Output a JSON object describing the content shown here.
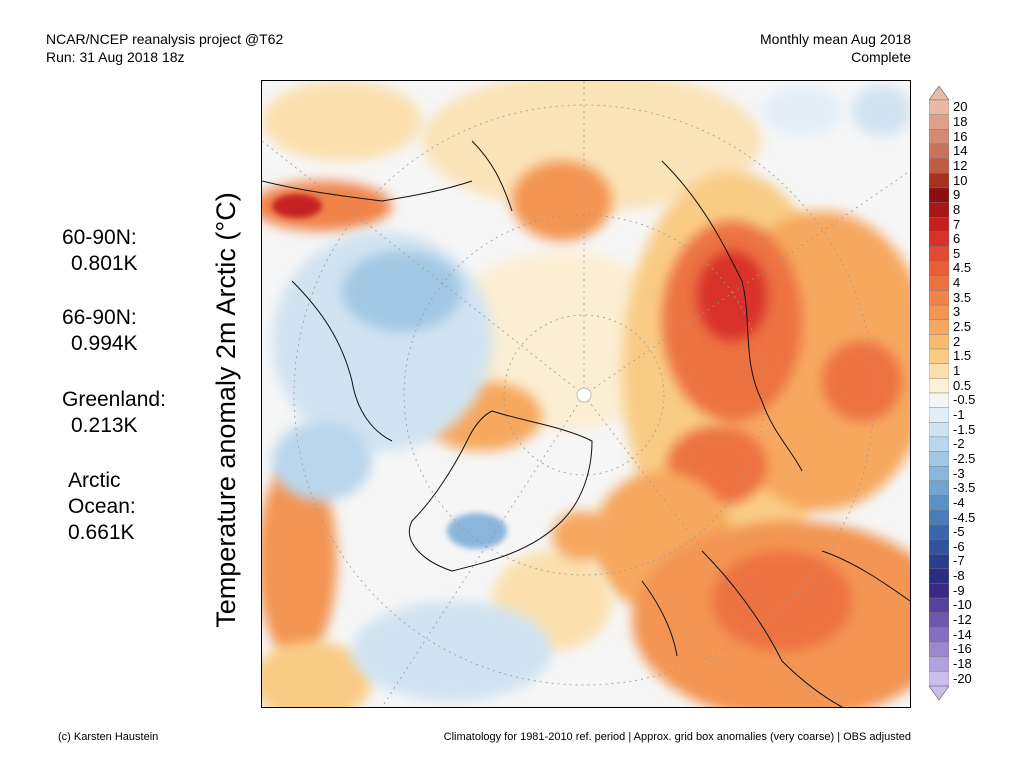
{
  "header": {
    "line1_left": "NCAR/NCEP reanalysis project @T62",
    "line2_left": "Run: 31 Aug 2018 18z",
    "line1_right": "Monthly mean Aug 2018",
    "line2_right": "Complete"
  },
  "stats": [
    {
      "label": "60-90N:",
      "value": "0.801K"
    },
    {
      "label": "66-90N:",
      "value": "0.994K"
    },
    {
      "label": "Greenland:",
      "value": "0.213K"
    },
    {
      "label": "Arctic",
      "label2": "Ocean:",
      "value": "0.661K"
    }
  ],
  "map_title": "Temperature anomaly 2m Arctic (°C)",
  "colorbar": {
    "labels": [
      "20",
      "18",
      "16",
      "14",
      "12",
      "10",
      "9",
      "8",
      "7",
      "6",
      "5",
      "4.5",
      "4",
      "3.5",
      "3",
      "2.5",
      "2",
      "1.5",
      "1",
      "0.5",
      "-0.5",
      "-1",
      "-1.5",
      "-2",
      "-2.5",
      "-3",
      "-3.5",
      "-4",
      "-4.5",
      "-5",
      "-6",
      "-7",
      "-8",
      "-9",
      "-10",
      "-12",
      "-14",
      "-16",
      "-18",
      "-20"
    ],
    "colors": [
      "#e8b9a4",
      "#dea08a",
      "#d48a72",
      "#c9735c",
      "#bd5d47",
      "#a8301f",
      "#8c0e0e",
      "#a81616",
      "#c42020",
      "#d8302a",
      "#e24a32",
      "#e85e3a",
      "#ed7242",
      "#f08449",
      "#f39552",
      "#f6a85e",
      "#f8ba6c",
      "#f9cc86",
      "#fbe0ae",
      "#fbf0d8",
      "#f5f5f5",
      "#e4eef7",
      "#d0e3f1",
      "#bad6ec",
      "#a2c7e4",
      "#8ab6dc",
      "#73a3d2",
      "#5d8fc6",
      "#4b7bba",
      "#3c66ac",
      "#32529c",
      "#2a3e8c",
      "#2c2d7e",
      "#3a2a84",
      "#55429a",
      "#6d58ae",
      "#8470c0",
      "#9a88d0",
      "#b1a2de",
      "#cbbeeb"
    ]
  },
  "footer": {
    "left": "(c) Karsten Haustein",
    "right": "Climatology for 1981-2010 ref. period | Approx. grid box anomalies (very coarse) | OBS adjusted"
  }
}
